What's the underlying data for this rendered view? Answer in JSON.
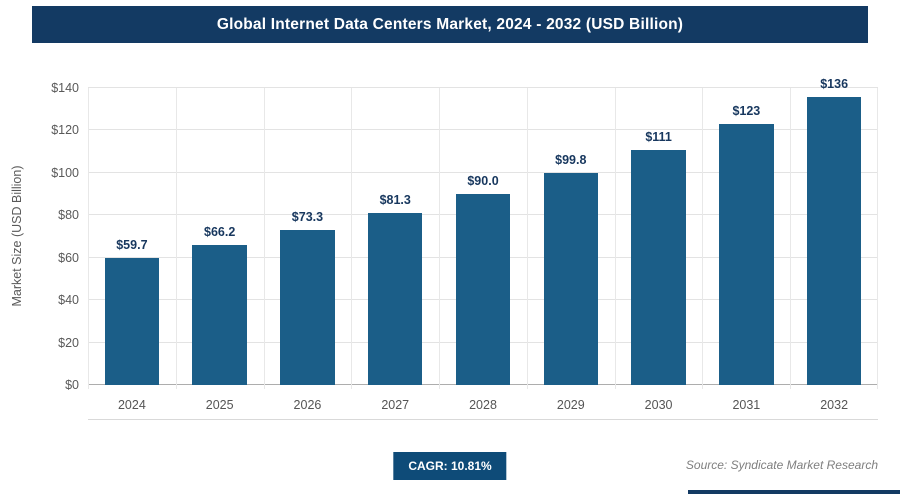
{
  "header": {
    "title": "Global Internet Data Centers Market, 2024 - 2032 (USD Billion)"
  },
  "chart_data": {
    "type": "bar",
    "title": "Global Internet Data Centers Market, 2024 - 2032 (USD Billion)",
    "categories": [
      "2024",
      "2025",
      "2026",
      "2027",
      "2028",
      "2029",
      "2030",
      "2031",
      "2032"
    ],
    "values": [
      59.7,
      66.2,
      73.3,
      81.3,
      90.0,
      99.8,
      111,
      123,
      136
    ],
    "data_labels": [
      "$59.7",
      "$66.2",
      "$73.3",
      "$81.3",
      "$90.0",
      "$99.8",
      "$111",
      "$123",
      "$136"
    ],
    "xlabel": "",
    "ylabel": "Market Size (USD Billion)",
    "ylim": [
      0,
      140
    ],
    "y_tick_step": 20,
    "y_tick_labels": [
      "$0",
      "$20",
      "$40",
      "$60",
      "$80",
      "$100",
      "$120",
      "$140"
    ],
    "grid": "horizontal and vertical light gray gridlines",
    "legend": "none",
    "bar_color": "#1b5e88"
  },
  "footer": {
    "cagr_label": "CAGR: 10.81%",
    "source": "Source: Syndicate Market Research"
  },
  "colors": {
    "banner_bg": "#133a63",
    "banner_text": "#ffffff",
    "bar": "#1b5e88",
    "badge_bg": "#0e4b78",
    "value_label": "#17375e",
    "axis_text": "#595959",
    "gridline": "#e3e3e3"
  }
}
